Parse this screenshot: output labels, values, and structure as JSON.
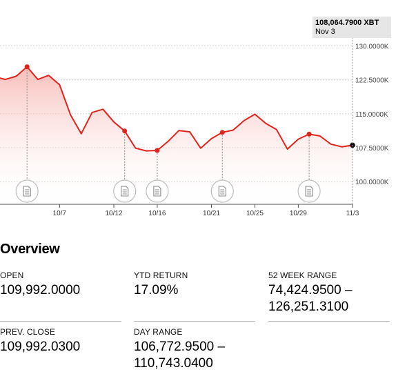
{
  "tooltip": {
    "price": "108,064.7900 XBT",
    "date": "Nov 3"
  },
  "chart_data": {
    "type": "area",
    "x": [
      "2025-10-01",
      "2025-10-02",
      "2025-10-03",
      "2025-10-04",
      "2025-10-05",
      "2025-10-06",
      "2025-10-07",
      "2025-10-08",
      "2025-10-09",
      "2025-10-10",
      "2025-10-11",
      "2025-10-12",
      "2025-10-13",
      "2025-10-14",
      "2025-10-15",
      "2025-10-16",
      "2025-10-17",
      "2025-10-18",
      "2025-10-19",
      "2025-10-20",
      "2025-10-21",
      "2025-10-22",
      "2025-10-23",
      "2025-10-24",
      "2025-10-25",
      "2025-10-26",
      "2025-10-27",
      "2025-10-28",
      "2025-10-29",
      "2025-10-30",
      "2025-10-31",
      "2025-11-01",
      "2025-11-02",
      "2025-11-03"
    ],
    "y": [
      123200,
      122600,
      123300,
      125400,
      122600,
      123500,
      121400,
      114800,
      110600,
      115300,
      116000,
      113200,
      111200,
      107400,
      106800,
      106900,
      108900,
      111300,
      111000,
      107400,
      109500,
      110900,
      111400,
      113500,
      114900,
      112900,
      111500,
      107200,
      109400,
      110500,
      110100,
      108300,
      107700,
      108064.79
    ],
    "markers": [
      "2025-10-04",
      "2025-10-13",
      "2025-10-16",
      "2025-10-22",
      "2025-10-30"
    ],
    "current_marker": "2025-11-03",
    "ylim": [
      95000,
      131000
    ],
    "yticks": [
      100000,
      107500,
      115000,
      122500,
      130000
    ],
    "ytick_labels": [
      "100.0000K",
      "107.5000K",
      "115.0000K",
      "122.5000K",
      "130.0000K"
    ],
    "xtick_labels": [
      "10/7",
      "10/12",
      "10/16",
      "10/21",
      "10/25",
      "10/29",
      "11/3"
    ],
    "line_color": "#e0231b",
    "fill_color": "#f5b5b0",
    "grid": true,
    "title": "",
    "xlabel": "",
    "ylabel": ""
  },
  "overview": {
    "title": "Overview",
    "stats": [
      {
        "label": "OPEN",
        "value": "109,992.0000"
      },
      {
        "label": "YTD RETURN",
        "value": "17.09%"
      },
      {
        "label": "52 WEEK RANGE",
        "value": "74,424.9500 –\n126,251.3100"
      },
      {
        "label": "PREV. CLOSE",
        "value": "109,992.0300"
      },
      {
        "label": "DAY RANGE",
        "value": "106,772.9500 –\n110,743.0400"
      }
    ]
  },
  "colors": {
    "accent": "#e0231b",
    "grid": "#cfcfcf",
    "divider": "#b8b8b8"
  },
  "icons": {
    "news_marker": "document-icon"
  }
}
